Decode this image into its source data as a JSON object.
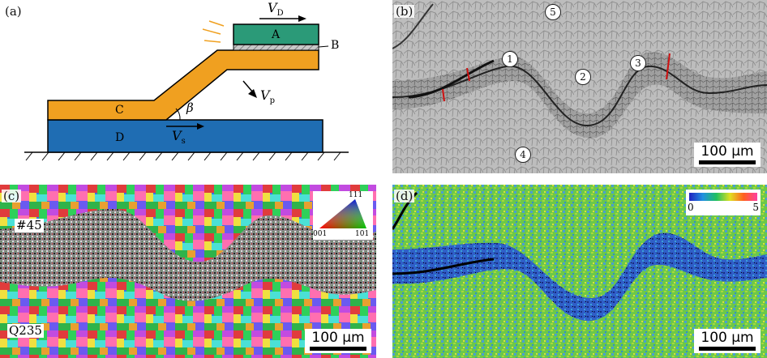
{
  "panel_a": {
    "label": "(a)",
    "block_a": "A",
    "block_b": "B",
    "block_c": "C",
    "block_d": "D",
    "angle": "β",
    "vd_symbol": "V",
    "vd_sub": "D",
    "vp_symbol": "V",
    "vp_sub": "p",
    "vs_symbol": "V",
    "vs_sub": "s",
    "colors": {
      "a": "#2b9a78",
      "b": "#aaaaaa",
      "c": "#f0a020",
      "d": "#1f6db3"
    }
  },
  "panel_b": {
    "label": "(b)",
    "markers": [
      "1",
      "2",
      "3",
      "4",
      "5"
    ],
    "scale": "100 μm"
  },
  "panel_c": {
    "label": "(c)",
    "top_material": "#45",
    "bottom_material": "Q235",
    "legend_111": "111",
    "legend_001": "001",
    "legend_101": "101",
    "scale": "100 μm"
  },
  "panel_d": {
    "label": "(d)",
    "colorbar_min": "0",
    "colorbar_max": "5",
    "scale": "100 μm"
  }
}
